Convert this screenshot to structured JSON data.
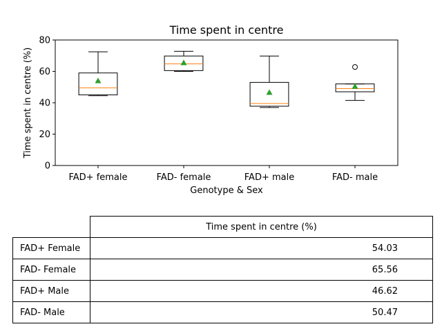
{
  "chart_data": {
    "type": "box",
    "title": "Time spent in centre",
    "xlabel": "Genotype & Sex",
    "ylabel": "Time spent in centre (%)",
    "ylim": [
      0,
      80
    ],
    "yticks": [
      0,
      20,
      40,
      60,
      80
    ],
    "grid": false,
    "categories": [
      "FAD+ female",
      "FAD- female",
      "FAD+ male",
      "FAD- male"
    ],
    "boxes": [
      {
        "whisker_low": 44.5,
        "q1": 45.0,
        "median": 49.5,
        "q3": 59.0,
        "whisker_high": 72.5,
        "mean": 54.03,
        "outliers": []
      },
      {
        "whisker_low": 60.0,
        "q1": 60.5,
        "median": 64.8,
        "q3": 69.8,
        "whisker_high": 72.8,
        "mean": 65.56,
        "outliers": []
      },
      {
        "whisker_low": 37.0,
        "q1": 37.8,
        "median": 39.5,
        "q3": 53.0,
        "whisker_high": 69.8,
        "mean": 46.62,
        "outliers": []
      },
      {
        "whisker_low": 41.5,
        "q1": 47.0,
        "median": 49.0,
        "q3": 52.0,
        "whisker_high": 52.0,
        "mean": 50.47,
        "outliers": [
          62.8
        ]
      }
    ],
    "colors": {
      "box": "#000000",
      "median": "#ff7f0e",
      "mean": "#2ca02c"
    }
  },
  "table": {
    "header": "Time spent in centre (%)",
    "rows": [
      {
        "label": "FAD+ Female",
        "value": "54.03"
      },
      {
        "label": "FAD- Female",
        "value": "65.56"
      },
      {
        "label": "FAD+ Male",
        "value": "46.62"
      },
      {
        "label": "FAD- Male",
        "value": "50.47"
      }
    ]
  }
}
